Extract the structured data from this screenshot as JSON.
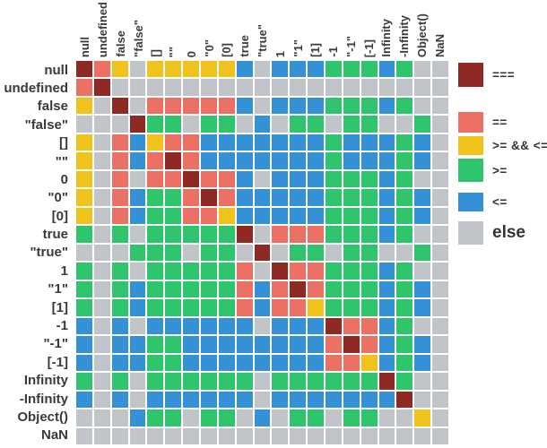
{
  "legend": {
    "items": [
      {
        "label": "===",
        "code": "R"
      },
      {
        "label": "==",
        "code": "S"
      },
      {
        "label": ">= && <=",
        "code": "Y"
      },
      {
        "label": ">=",
        "code": "G"
      },
      {
        "label": "<=",
        "code": "B"
      },
      {
        "label": "else",
        "code": "X"
      }
    ]
  },
  "colors": {
    "R": "#8e2a23",
    "S": "#ec7063",
    "Y": "#efc31c",
    "G": "#2fc56d",
    "B": "#3591d6",
    "X": "#c1c4c8",
    "grid": "#ffffff",
    "label_text": "#3a3a3a"
  },
  "chart_data": {
    "type": "heatmap",
    "title": "",
    "categories": [
      "null",
      "undefined",
      "false",
      "\"false\"",
      "[]",
      "\"\"",
      "0",
      "\"0\"",
      "[0]",
      "true",
      "\"true\"",
      "1",
      "\"1\"",
      "[1]",
      "-1",
      "\"-1\"",
      "[-1]",
      "Infinity",
      "-Infinity",
      "Object()",
      "NaN"
    ],
    "rows": [
      "null",
      "undefined",
      "false",
      "\"false\"",
      "[]",
      "\"\"",
      "0",
      "\"0\"",
      "[0]",
      "true",
      "\"true\"",
      "1",
      "\"1\"",
      "[1]",
      "-1",
      "\"-1\"",
      "[-1]",
      "Infinity",
      "-Infinity",
      "Object()",
      "NaN"
    ],
    "code_legend": {
      "R": "===",
      "S": "==",
      "Y": ">= && <=",
      "G": ">=",
      "B": "<=",
      "X": "else"
    },
    "cells": [
      "RSYXYYYYYBXBBBGGGBGXX",
      "SRXXXXXXXXXXXXXXXXXXX",
      "YXRXSSSSSBXBBBGGGBGXX",
      "XXXRGGXGGXBXGGXGGXXGX",
      "YXSBYSSBBBBBBBGBBBGBX",
      "YXSBSRSBBBBBBBGBBBGBX",
      "YXSXSSRSSBXBBBGGGBGXX",
      "YXSBGGSRSBBBBBGGGBGBX",
      "YXSBGGSSYBBBBBGGGBGBX",
      "GXGXGGGGGRXSSSGGGBGXX",
      "XXXGGGXGGXRXGGXGGXXGX",
      "GXGXGGGGGSXRSSGGGBGXX",
      "GXGBGGGGGSBSRSGGGBGBX",
      "GXGBGGGGGSBSSYGGGBGBX",
      "BXBXBBBBBBXBBBRSSBGXX",
      "BXBBGGBBBBBBBBSRSBGBX",
      "BXBBGGBBBBBBBBSSYBGBX",
      "GXGXGGGGGGXGGGGGGRGXX",
      "BXBXBBBBBBXBBBBBBBRXX",
      "XXXBGGXGGXBXGGXGGXXYX",
      "XXXXXXXXXXXXXXXXXXXXX"
    ]
  }
}
